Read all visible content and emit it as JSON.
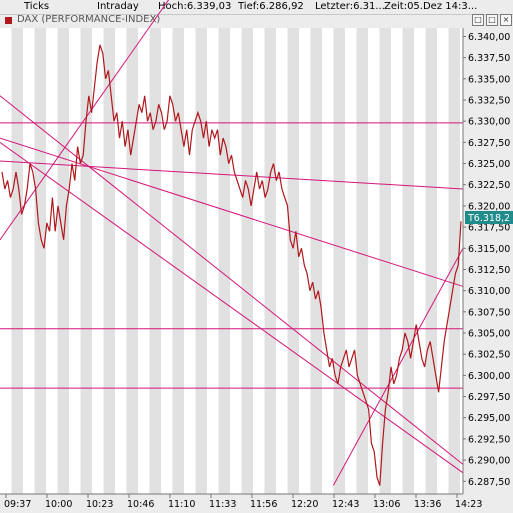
{
  "topbar": {
    "ticks_label": "Ticks",
    "intraday_label": "Intraday",
    "high_label": "Hoch:6.339,03",
    "low_label": "Tief:6.286,92",
    "last_label": "Letzter:6.31...",
    "time_label": "Zeit:05.Dez 14:3..."
  },
  "legend": {
    "title": "DAX (PERFORMANCE-INDEX)"
  },
  "window_buttons": [
    "□",
    "□",
    "×"
  ],
  "colors": {
    "price_line": "#b0181d",
    "trend_lines": "#d4157a",
    "last_tag_bg": "#1f8b8b",
    "stripe": "#e1e1e1"
  },
  "chart_data": {
    "type": "line",
    "title": "DAX (PERFORMANCE-INDEX)",
    "ylim": [
      6286,
      6341
    ],
    "yticks": [
      "6.340,00",
      "6.337,50",
      "6.335,00",
      "6.332,50",
      "6.330,00",
      "6.327,50",
      "6.325,00",
      "6.322,50",
      "6.320,00",
      "6.317,50",
      "6.315,00",
      "6.312,50",
      "6.310,00",
      "6.307,50",
      "6.305,00",
      "6.302,50",
      "6.300,00",
      "6.297,50",
      "6.295,00",
      "6.292,50",
      "6.290,00",
      "6.287,50"
    ],
    "ytick_values": [
      6340,
      6337.5,
      6335,
      6332.5,
      6330,
      6327.5,
      6325,
      6322.5,
      6320,
      6317.5,
      6315,
      6312.5,
      6310,
      6307.5,
      6305,
      6302.5,
      6300,
      6297.5,
      6295,
      6292.5,
      6290,
      6287.5
    ],
    "xticks": [
      "09:37",
      "10:00",
      "10:23",
      "10:46",
      "11:10",
      "11:33",
      "11:56",
      "12:20",
      "12:43",
      "13:06",
      "13:36",
      "14:23"
    ],
    "last_value": "T6.318,2",
    "series": [
      {
        "values": [
          6324,
          6322,
          6323,
          6321,
          6322,
          6324,
          6322,
          6319,
          6320,
          6322,
          6325,
          6324,
          6322,
          6318,
          6316,
          6315,
          6318,
          6317,
          6321,
          6317,
          6320,
          6318,
          6316,
          6320,
          6322,
          6325,
          6323,
          6327,
          6325,
          6326,
          6330,
          6333,
          6331,
          6334,
          6337,
          6339,
          6338,
          6335,
          6336,
          6333,
          6330,
          6331,
          6328,
          6330,
          6327,
          6329,
          6326,
          6328,
          6330,
          6332,
          6331,
          6333,
          6330,
          6331,
          6329,
          6330,
          6332,
          6331,
          6329,
          6330,
          6333,
          6332,
          6330,
          6331,
          6329,
          6327,
          6329,
          6326,
          6329,
          6330,
          6331,
          6330,
          6328,
          6330,
          6327,
          6329,
          6328,
          6329,
          6326,
          6328,
          6327,
          6325,
          6326,
          6324,
          6323,
          6322,
          6321,
          6323,
          6322,
          6320,
          6322,
          6324,
          6322,
          6323,
          6321,
          6322,
          6324,
          6325,
          6323,
          6324,
          6322,
          6321,
          6320,
          6316,
          6315,
          6317,
          6314,
          6315,
          6313,
          6312,
          6310,
          6311,
          6309,
          6310,
          6308,
          6305,
          6303,
          6301,
          6302,
          6300,
          6299,
          6301,
          6302,
          6303,
          6301,
          6302,
          6303,
          6300,
          6299,
          6298,
          6297,
          6296,
          6292,
          6291,
          6288,
          6287,
          6292,
          6296,
          6298,
          6301,
          6299,
          6300,
          6302,
          6303,
          6305,
          6304,
          6302,
          6304,
          6306,
          6304,
          6302,
          6301,
          6303,
          6304,
          6302,
          6300,
          6298,
          6301,
          6304,
          6306,
          6308,
          6310,
          6312,
          6313,
          6318.2
        ]
      }
    ],
    "horizontal_lines": [
      6329.8,
      6305.5,
      6298.5
    ],
    "trend_lines": [
      {
        "p1": [
          0,
          6333
        ],
        "p2": [
          1,
          6289.5
        ]
      },
      {
        "p1": [
          0,
          6327.5
        ],
        "p2": [
          1,
          6288.5
        ]
      },
      {
        "p1": [
          0,
          6328
        ],
        "p2": [
          1,
          6310.5
        ]
      },
      {
        "p1": [
          0,
          6325.3
        ],
        "p2": [
          1,
          6322
        ]
      },
      {
        "p1": [
          0,
          6316
        ],
        "p2": [
          0.45,
          6351
        ]
      },
      {
        "p1": [
          0.72,
          6287
        ],
        "p2": [
          1,
          6315
        ]
      }
    ]
  }
}
